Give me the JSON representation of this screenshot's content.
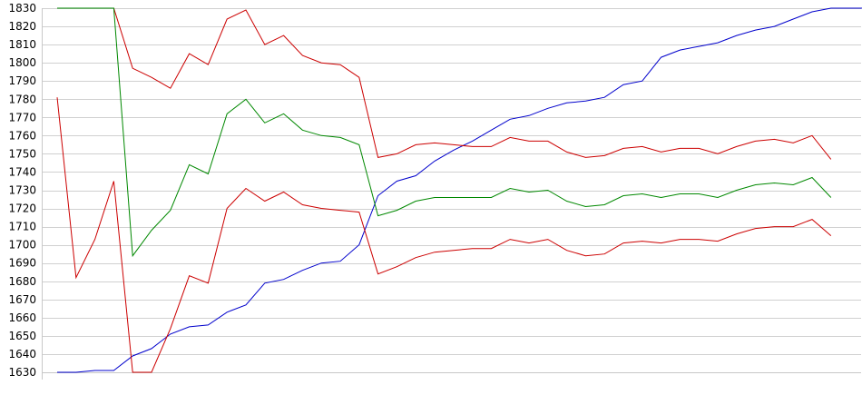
{
  "chart_data": {
    "type": "line",
    "title": "",
    "xlabel": "",
    "ylabel": "",
    "ylim": [
      1630,
      1830
    ],
    "yticks": [
      1630,
      1640,
      1650,
      1660,
      1670,
      1680,
      1690,
      1700,
      1710,
      1720,
      1730,
      1740,
      1750,
      1760,
      1770,
      1780,
      1790,
      1800,
      1810,
      1820,
      1830
    ],
    "grid": "horizontal",
    "legend": "none",
    "x": [
      0,
      1,
      2,
      3,
      4,
      5,
      6,
      7,
      8,
      9,
      10,
      11,
      12,
      13,
      14,
      15,
      16,
      17,
      18,
      19,
      20,
      21,
      22,
      23,
      24,
      25,
      26,
      27,
      28,
      29,
      30,
      31,
      32,
      33,
      34,
      35,
      36,
      37,
      38,
      39,
      40,
      41,
      42,
      43
    ],
    "series": [
      {
        "color": "#0000cc",
        "values": [
          1630,
          1630,
          1631,
          1631,
          1639,
          1643,
          1651,
          1655,
          1656,
          1663,
          1667,
          1679,
          1681,
          1686,
          1690,
          1691,
          1700,
          1727,
          1735,
          1738,
          1746,
          1752,
          1757,
          1763,
          1769,
          1771,
          1775,
          1778,
          1779,
          1781,
          1788,
          1790,
          1803,
          1807,
          1809,
          1811,
          1815,
          1818,
          1820,
          1824,
          1828,
          1830,
          1830,
          1830
        ]
      },
      {
        "color": "#cc0000",
        "values": [
          1830,
          1830,
          1830,
          1830,
          1797,
          1792,
          1786,
          1805,
          1799,
          1824,
          1829,
          1810,
          1815,
          1804,
          1800,
          1799,
          1792,
          1748,
          1750,
          1755,
          1756,
          1755,
          1754,
          1754,
          1759,
          1757,
          1757,
          1751,
          1748,
          1749,
          1753,
          1754,
          1751,
          1753,
          1753,
          1750,
          1754,
          1757,
          1758,
          1756,
          1760,
          1747,
          null,
          null
        ]
      },
      {
        "color": "#008800",
        "values": [
          1830,
          1830,
          1830,
          1830,
          1694,
          1708,
          1719,
          1744,
          1739,
          1772,
          1780,
          1767,
          1772,
          1763,
          1760,
          1759,
          1755,
          1716,
          1719,
          1724,
          1726,
          1726,
          1726,
          1726,
          1731,
          1729,
          1730,
          1724,
          1721,
          1722,
          1727,
          1728,
          1726,
          1728,
          1728,
          1726,
          1730,
          1733,
          1734,
          1733,
          1737,
          1726,
          null,
          null
        ]
      },
      {
        "color": "#cc0000",
        "values": [
          1781,
          1682,
          1703,
          1735,
          1630,
          1630,
          1654,
          1683,
          1679,
          1720,
          1731,
          1724,
          1729,
          1722,
          1720,
          1719,
          1718,
          1684,
          1688,
          1693,
          1696,
          1697,
          1698,
          1698,
          1703,
          1701,
          1703,
          1697,
          1694,
          1695,
          1701,
          1702,
          1701,
          1703,
          1703,
          1702,
          1706,
          1709,
          1710,
          1710,
          1714,
          1705,
          null,
          null
        ]
      }
    ]
  }
}
